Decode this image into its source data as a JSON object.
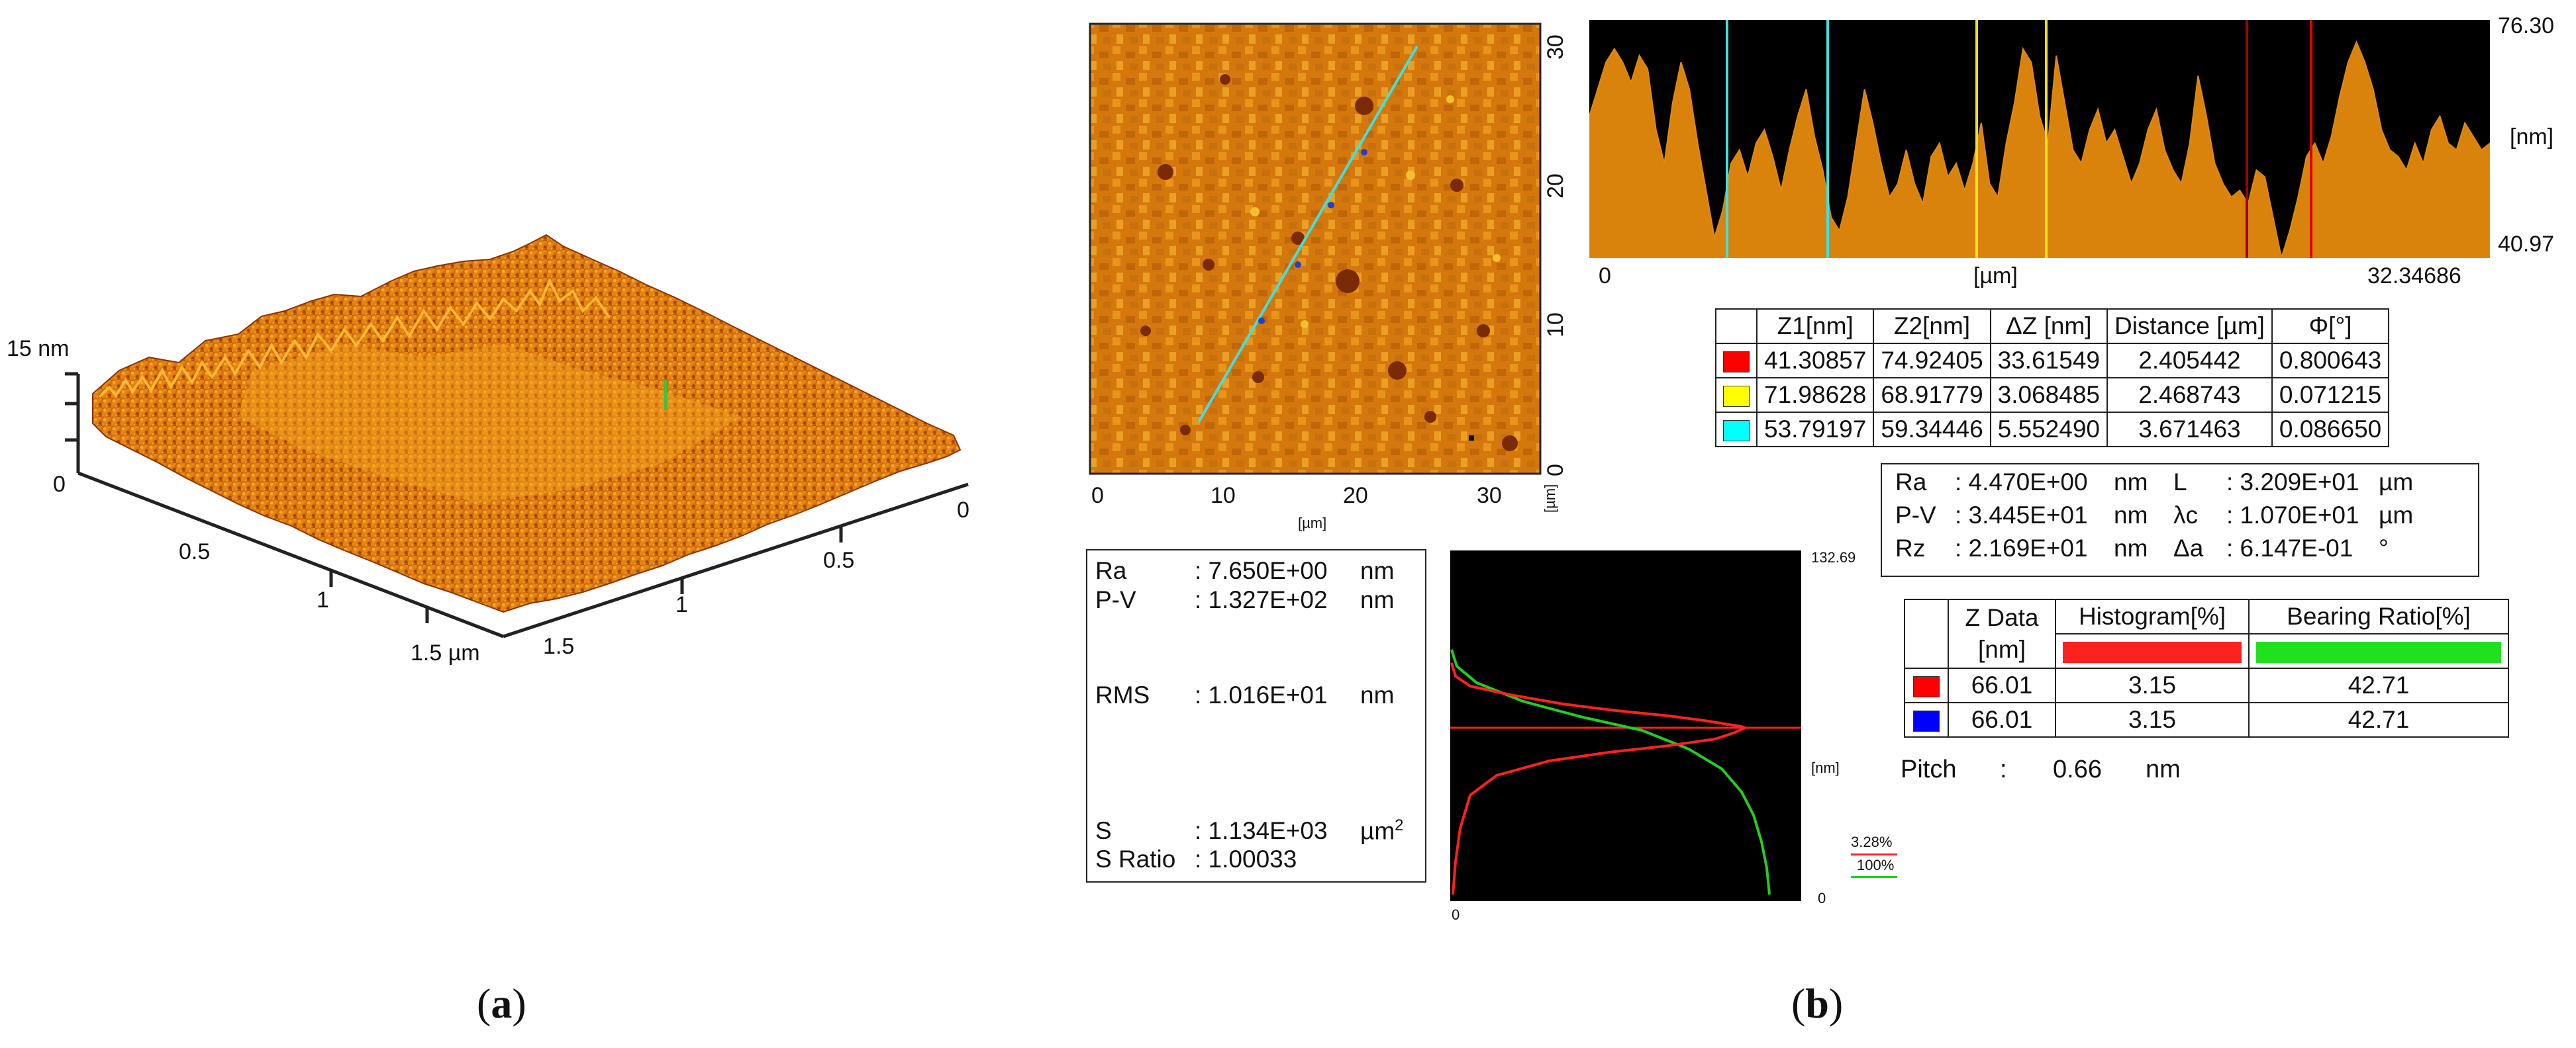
{
  "panel_a": {
    "caption_open": "(",
    "caption_letter": "a",
    "caption_close": ")",
    "z_label": "15 nm",
    "z_zero": "0",
    "left_axis_ticks": [
      "0.5",
      "1",
      "1.5 µm"
    ],
    "right_axis_ticks": [
      "0",
      "0.5",
      "1",
      "1.5"
    ],
    "colors": {
      "dark": "#a64400",
      "mid": "#e07a10",
      "light": "#ffb020"
    }
  },
  "panel_b": {
    "caption_open": "(",
    "caption_letter": "b",
    "caption_close": ")",
    "afm_map": {
      "x_ticks": [
        "0",
        "10",
        "20",
        "30"
      ],
      "x_unit": "[µm]",
      "y_ticks": [
        "30",
        "20",
        "10",
        "0"
      ],
      "y_unit": "[µm]",
      "colors": {
        "base": "#d4780e",
        "light": "#f0a020",
        "dark": "#7a2a05",
        "line": "#40e0e0"
      }
    },
    "profile": {
      "y_max": "76.30",
      "y_min": "40.97",
      "y_unit": "[nm]",
      "x_start": "0",
      "x_unit": "[µm]",
      "x_end": "32.34686",
      "profile_values": [
        62,
        66,
        70,
        72,
        70,
        67,
        71,
        69,
        60,
        55,
        64,
        70,
        66,
        58,
        51,
        44,
        48,
        55,
        57,
        53,
        58,
        60,
        56,
        51,
        57,
        62,
        66,
        59,
        54,
        47,
        45,
        50,
        58,
        66,
        61,
        55,
        50,
        52,
        57,
        52,
        49,
        56,
        58,
        53,
        55,
        51,
        55,
        61,
        52,
        50,
        58,
        64,
        72,
        70,
        62,
        58,
        71,
        64,
        57,
        55,
        60,
        63,
        58,
        60,
        56,
        52,
        55,
        60,
        63,
        57,
        54,
        52,
        58,
        68,
        62,
        55,
        52,
        50,
        51,
        49,
        54,
        53,
        47,
        41,
        45,
        50,
        56,
        58,
        55,
        59,
        65,
        70,
        73,
        70,
        66,
        60,
        57,
        56,
        54,
        58,
        55,
        60,
        62,
        58,
        57,
        61,
        59,
        57,
        58
      ],
      "colors": {
        "fill": "#d9820c",
        "bg": "#000000",
        "cyan": "#40e0e0",
        "yellow": "#f0e020",
        "red": "#d00000"
      }
    },
    "cursor_table": {
      "headers": [
        "",
        "Z1[nm]",
        "Z2[nm]",
        "ΔZ [nm]",
        "Distance [µm]",
        "Φ[°]"
      ],
      "rows": [
        {
          "color": "#ff0000",
          "z1": "41.30857",
          "z2": "74.92405",
          "dz": "33.61549",
          "distance": "2.405442",
          "phi": "0.800643"
        },
        {
          "color": "#ffff00",
          "z1": "71.98628",
          "z2": "68.91779",
          "dz": "3.068485",
          "distance": "2.468743",
          "phi": "0.071215"
        },
        {
          "color": "#00ffff",
          "z1": "53.79197",
          "z2": "59.34446",
          "dz": "5.552490",
          "distance": "3.671463",
          "phi": "0.086650"
        }
      ]
    },
    "roughness_box": {
      "rows": [
        [
          "Ra",
          ": 4.470E+00",
          "nm",
          "L",
          ": 3.209E+01",
          "µm"
        ],
        [
          "P-V",
          ": 3.445E+01",
          "nm",
          "λc",
          ": 1.070E+01",
          "µm"
        ],
        [
          "Rz",
          ": 2.169E+01",
          "nm",
          "Δa",
          ": 6.147E-01",
          "°"
        ]
      ]
    },
    "area_stats": {
      "ra_label": "Ra",
      "ra_value": ": 7.650E+00",
      "ra_unit": "nm",
      "pv_label": "P-V",
      "pv_value": ": 1.327E+02",
      "pv_unit": "nm",
      "rms_label": "RMS",
      "rms_value": ": 1.016E+01",
      "rms_unit": "nm",
      "s_label": "S",
      "s_value": ": 1.134E+03",
      "s_unit": "µm",
      "s_unit_exp": "2",
      "sratio_label": "S Ratio",
      "sratio_value": ": 1.00033"
    },
    "histogram": {
      "y_max": "132.69",
      "y_min": "0",
      "y_unit": "[nm]",
      "x_zero": "0",
      "legend_hist": "3.28%",
      "legend_bearing": "100%",
      "colors": {
        "histogram": "#ff2020",
        "bearing": "#20d020",
        "bg": "#000000"
      }
    },
    "zdata_table": {
      "header_zdata": "Z Data",
      "header_zdata_unit": "[nm]",
      "header_histogram": "Histogram[%]",
      "header_bearing": "Bearing Ratio[%]",
      "rows": [
        {
          "color": "#ff0000",
          "z": "66.01",
          "histogram": "3.15",
          "bearing": "42.71"
        },
        {
          "color": "#0000ff",
          "z": "66.01",
          "histogram": "3.15",
          "bearing": "42.71"
        }
      ]
    },
    "pitch": {
      "label": "Pitch",
      "colon": ":",
      "value": "0.66",
      "unit": "nm"
    }
  }
}
